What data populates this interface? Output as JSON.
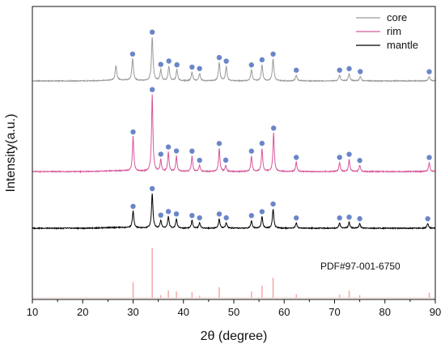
{
  "chart_data": {
    "type": "line",
    "xlabel": "2θ (degree)",
    "ylabel": "Intensity(a.u.)",
    "xlim": [
      10,
      90
    ],
    "x_ticks": [
      10,
      20,
      30,
      40,
      50,
      60,
      70,
      80,
      90
    ],
    "y_ticks_shown": false,
    "grid": false,
    "legend_position": "top-right",
    "annotation": "PDF#97-001-6750",
    "series": [
      {
        "name": "core",
        "color": "#9a9a9a",
        "peaks": [
          {
            "x": 26.6,
            "h": 0.2
          },
          {
            "x": 29.9,
            "h": 0.3
          },
          {
            "x": 33.8,
            "h": 0.6
          },
          {
            "x": 35.5,
            "h": 0.15
          },
          {
            "x": 37.1,
            "h": 0.2
          },
          {
            "x": 38.7,
            "h": 0.15
          },
          {
            "x": 41.7,
            "h": 0.12
          },
          {
            "x": 43.2,
            "h": 0.1
          },
          {
            "x": 47.1,
            "h": 0.25
          },
          {
            "x": 48.5,
            "h": 0.2
          },
          {
            "x": 53.5,
            "h": 0.15
          },
          {
            "x": 55.6,
            "h": 0.22
          },
          {
            "x": 57.8,
            "h": 0.3
          },
          {
            "x": 62.4,
            "h": 0.08
          },
          {
            "x": 71.0,
            "h": 0.08
          },
          {
            "x": 72.9,
            "h": 0.1
          },
          {
            "x": 75.1,
            "h": 0.06
          },
          {
            "x": 88.8,
            "h": 0.06
          }
        ]
      },
      {
        "name": "rim",
        "color": "#d9579b",
        "peaks": [
          {
            "x": 30.0,
            "h": 0.45
          },
          {
            "x": 33.8,
            "h": 1.0
          },
          {
            "x": 35.5,
            "h": 0.15
          },
          {
            "x": 37.0,
            "h": 0.25
          },
          {
            "x": 38.6,
            "h": 0.2
          },
          {
            "x": 41.7,
            "h": 0.2
          },
          {
            "x": 43.2,
            "h": 0.08
          },
          {
            "x": 47.1,
            "h": 0.3
          },
          {
            "x": 48.4,
            "h": 0.08
          },
          {
            "x": 53.5,
            "h": 0.2
          },
          {
            "x": 55.6,
            "h": 0.3
          },
          {
            "x": 57.9,
            "h": 0.5
          },
          {
            "x": 62.4,
            "h": 0.12
          },
          {
            "x": 71.0,
            "h": 0.12
          },
          {
            "x": 72.9,
            "h": 0.16
          },
          {
            "x": 75.0,
            "h": 0.08
          },
          {
            "x": 88.8,
            "h": 0.12
          }
        ]
      },
      {
        "name": "mantle",
        "color": "#000000",
        "peaks": [
          {
            "x": 30.0,
            "h": 0.22
          },
          {
            "x": 33.8,
            "h": 0.45
          },
          {
            "x": 35.5,
            "h": 0.1
          },
          {
            "x": 37.0,
            "h": 0.15
          },
          {
            "x": 38.6,
            "h": 0.12
          },
          {
            "x": 41.7,
            "h": 0.1
          },
          {
            "x": 43.2,
            "h": 0.07
          },
          {
            "x": 47.1,
            "h": 0.12
          },
          {
            "x": 48.5,
            "h": 0.07
          },
          {
            "x": 53.5,
            "h": 0.1
          },
          {
            "x": 55.6,
            "h": 0.15
          },
          {
            "x": 57.8,
            "h": 0.25
          },
          {
            "x": 62.4,
            "h": 0.07
          },
          {
            "x": 71.0,
            "h": 0.07
          },
          {
            "x": 72.9,
            "h": 0.08
          },
          {
            "x": 75.0,
            "h": 0.06
          },
          {
            "x": 88.5,
            "h": 0.06
          }
        ]
      }
    ],
    "reference_lines": {
      "color": "#f4a2a2",
      "peaks": [
        {
          "x": 30.0,
          "h": 0.3
        },
        {
          "x": 33.8,
          "h": 0.95
        },
        {
          "x": 35.5,
          "h": 0.05
        },
        {
          "x": 37.0,
          "h": 0.14
        },
        {
          "x": 38.6,
          "h": 0.12
        },
        {
          "x": 41.7,
          "h": 0.11
        },
        {
          "x": 43.2,
          "h": 0.04
        },
        {
          "x": 47.1,
          "h": 0.2
        },
        {
          "x": 53.5,
          "h": 0.12
        },
        {
          "x": 55.6,
          "h": 0.23
        },
        {
          "x": 57.8,
          "h": 0.38
        },
        {
          "x": 62.4,
          "h": 0.07
        },
        {
          "x": 71.0,
          "h": 0.06
        },
        {
          "x": 72.9,
          "h": 0.14
        },
        {
          "x": 75.0,
          "h": 0.05
        },
        {
          "x": 88.8,
          "h": 0.1
        }
      ]
    },
    "marker_color": "#6a86c8"
  }
}
